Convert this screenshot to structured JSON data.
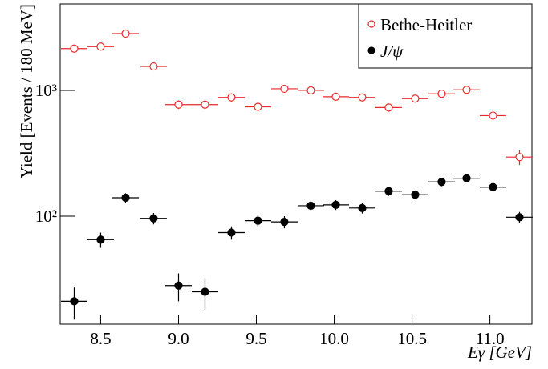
{
  "chart_data": {
    "type": "errorbar",
    "xlabel": "Eγ [GeV]",
    "ylabel": "Yield [Events / 180 MeV]",
    "log_y": true,
    "legend": "upper right",
    "xlim": [
      8.24,
      11.27
    ],
    "ylim": [
      13.8,
      4870
    ],
    "xticks": [
      8.5,
      {
        "value": 9,
        "label": "9.0"
      },
      9.5,
      {
        "value": 10,
        "label": "10.0"
      },
      10.5,
      {
        "value": 11,
        "label": "11.0"
      }
    ],
    "yticks": [
      {
        "value": 100,
        "label": "10²"
      },
      {
        "value": 1000,
        "label": "10³"
      }
    ],
    "x": [
      8.33,
      8.5,
      8.66,
      8.84,
      9.0,
      9.17,
      9.34,
      9.51,
      9.68,
      9.85,
      10.01,
      10.18,
      10.35,
      10.52,
      10.69,
      10.85,
      11.02,
      11.19
    ],
    "xerr": 0.085,
    "series": [
      {
        "name": "Bethe-Heitler",
        "color": "#e8292b",
        "filled": false,
        "values": [
          2150,
          2230,
          2830,
          1550,
          770,
          770,
          880,
          740,
          1030,
          1000,
          890,
          880,
          730,
          860,
          940,
          1010,
          630,
          295
        ],
        "errors": [
          110,
          110,
          140,
          80,
          60,
          60,
          65,
          60,
          55,
          55,
          50,
          50,
          55,
          50,
          50,
          55,
          45,
          40
        ]
      },
      {
        "name": "J/ψ",
        "color": "#000000",
        "filled": true,
        "values": [
          21,
          65,
          140,
          96,
          28,
          25,
          74,
          92,
          90,
          121,
          123,
          116,
          158,
          148,
          187,
          200,
          170,
          98
        ],
        "errors": [
          6,
          9,
          12,
          10,
          7,
          7,
          9,
          10,
          10,
          11,
          11,
          11,
          13,
          12,
          14,
          14,
          13,
          10
        ]
      }
    ]
  }
}
